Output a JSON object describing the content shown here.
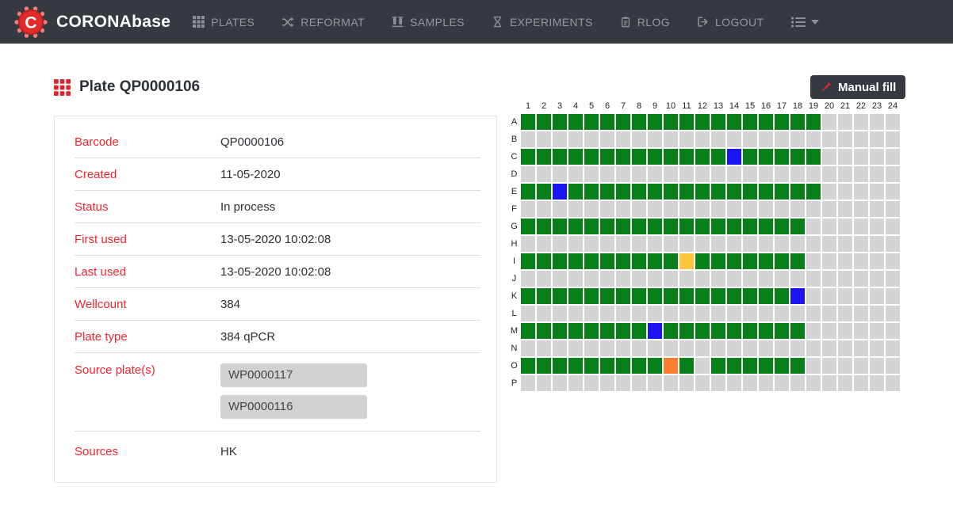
{
  "navbar": {
    "brand": "CORONAbase",
    "items": [
      {
        "label": "PLATES",
        "icon": "grid-icon"
      },
      {
        "label": "REFORMAT",
        "icon": "shuffle-icon"
      },
      {
        "label": "SAMPLES",
        "icon": "vials-icon"
      },
      {
        "label": "EXPERIMENTS",
        "icon": "hourglass-icon"
      },
      {
        "label": "RLOG",
        "icon": "clipboard-icon"
      },
      {
        "label": "LOGOUT",
        "icon": "logout-icon"
      }
    ]
  },
  "page": {
    "title": "Plate QP0000106",
    "manual_fill_label": "Manual fill"
  },
  "details": {
    "rows": [
      {
        "type": "text",
        "label": "Barcode",
        "value": "QP0000106"
      },
      {
        "type": "text",
        "label": "Created",
        "value": "11-05-2020"
      },
      {
        "type": "text",
        "label": "Status",
        "value": "In process"
      },
      {
        "type": "text",
        "label": "First used",
        "value": "13-05-2020 10:02:08"
      },
      {
        "type": "text",
        "label": "Last used",
        "value": "13-05-2020 10:02:08"
      },
      {
        "type": "text",
        "label": "Wellcount",
        "value": "384"
      },
      {
        "type": "text",
        "label": "Plate type",
        "value": "384 qPCR"
      },
      {
        "type": "chips",
        "label": "Source plate(s)",
        "chips": [
          "WP0000117",
          "WP0000116"
        ]
      },
      {
        "type": "text",
        "label": "Sources",
        "value": "HK"
      }
    ]
  },
  "plate_grid": {
    "column_labels": [
      "1",
      "2",
      "3",
      "4",
      "5",
      "6",
      "7",
      "8",
      "9",
      "10",
      "11",
      "12",
      "13",
      "14",
      "15",
      "16",
      "17",
      "18",
      "19",
      "20",
      "21",
      "22",
      "23",
      "24"
    ],
    "row_labels": [
      "A",
      "B",
      "C",
      "D",
      "E",
      "F",
      "G",
      "H",
      "I",
      "J",
      "K",
      "L",
      "M",
      "N",
      "O",
      "P"
    ],
    "well_colors": {
      "filled": "#07801A",
      "empty": "#D4D4D4",
      "blue": "#1B13F0",
      "yellow": "#FDC43E",
      "orange": "#FD7E2E"
    },
    "rows": [
      {
        "row": "A",
        "filled_from": 1,
        "filled_to": 19
      },
      {
        "row": "B",
        "filled_from": 0,
        "filled_to": 0
      },
      {
        "row": "C",
        "filled_from": 1,
        "filled_to": 19,
        "overrides": {
          "14": "blue"
        }
      },
      {
        "row": "D",
        "filled_from": 0,
        "filled_to": 0
      },
      {
        "row": "E",
        "filled_from": 1,
        "filled_to": 19,
        "overrides": {
          "3": "blue"
        }
      },
      {
        "row": "F",
        "filled_from": 0,
        "filled_to": 0
      },
      {
        "row": "G",
        "filled_from": 1,
        "filled_to": 18
      },
      {
        "row": "H",
        "filled_from": 0,
        "filled_to": 0
      },
      {
        "row": "I",
        "filled_from": 1,
        "filled_to": 18,
        "overrides": {
          "11": "yellow"
        }
      },
      {
        "row": "J",
        "filled_from": 0,
        "filled_to": 0
      },
      {
        "row": "K",
        "filled_from": 1,
        "filled_to": 18,
        "overrides": {
          "18": "blue"
        }
      },
      {
        "row": "L",
        "filled_from": 0,
        "filled_to": 0
      },
      {
        "row": "M",
        "filled_from": 1,
        "filled_to": 18,
        "overrides": {
          "9": "blue"
        }
      },
      {
        "row": "N",
        "filled_from": 0,
        "filled_to": 0
      },
      {
        "row": "O",
        "filled_from": 1,
        "filled_to": 18,
        "overrides": {
          "10": "orange",
          "12": "empty"
        }
      },
      {
        "row": "P",
        "filled_from": 0,
        "filled_to": 0
      }
    ]
  },
  "colors": {
    "navbar_bg": "#343A40",
    "accent_red": "#F2242F",
    "button_bg": "#343A40",
    "chip_bg": "#D2D2D2",
    "text_dark": "#2B3036"
  }
}
